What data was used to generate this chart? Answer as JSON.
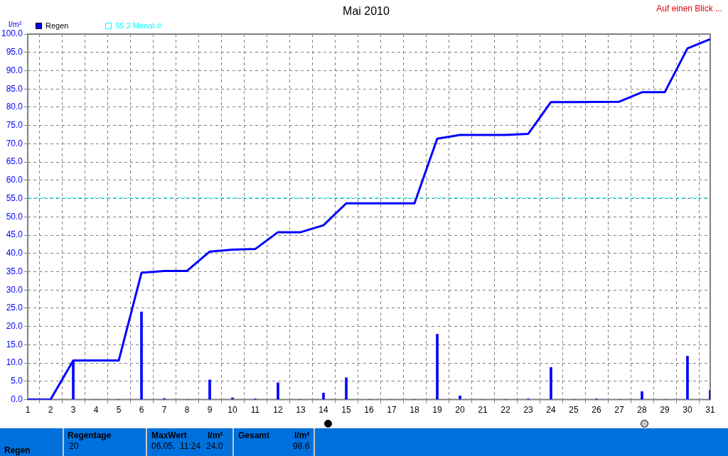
{
  "chart_data": {
    "type": "bar",
    "title": "Mai 2010",
    "ylabel": "l/m²",
    "legend": "top left",
    "x": [
      1,
      2,
      3,
      4,
      5,
      6,
      7,
      8,
      9,
      10,
      11,
      12,
      13,
      14,
      15,
      16,
      17,
      18,
      19,
      20,
      21,
      22,
      23,
      24,
      25,
      26,
      27,
      28,
      29,
      30,
      31
    ],
    "series": [
      {
        "name": "Regen",
        "color": "#0000ff",
        "values": [
          0,
          0,
          10.7,
          0,
          0,
          24.0,
          0.3,
          0,
          5.4,
          0.5,
          0.2,
          4.6,
          0,
          1.8,
          6.0,
          0,
          0,
          0,
          17.9,
          1.0,
          0,
          0,
          0.2,
          8.8,
          0,
          0.2,
          0,
          2.2,
          0,
          11.9,
          2.6
        ]
      },
      {
        "type": "line",
        "color": "#0000ff",
        "x": [
          1,
          2,
          3,
          5,
          6,
          7,
          8,
          9,
          10,
          11,
          12,
          13,
          14,
          15,
          18,
          19,
          20,
          22,
          23,
          24,
          25,
          27,
          28,
          29,
          30,
          31
        ],
        "values": [
          0,
          0,
          10.7,
          10.7,
          34.7,
          35.2,
          35.2,
          40.5,
          41.0,
          41.2,
          45.8,
          45.8,
          47.7,
          53.7,
          53.7,
          71.4,
          72.4,
          72.4,
          72.7,
          81.4,
          81.4,
          81.5,
          84.1,
          84.1,
          96.1,
          98.6
        ]
      }
    ],
    "ref_lines": [
      {
        "axis": "y",
        "value": 55.2,
        "label": "55.2 Monat-#",
        "color": "#00ffff",
        "line_style": "dashed"
      }
    ],
    "xlim": [
      1,
      31
    ],
    "xticks": [
      1,
      2,
      3,
      4,
      5,
      6,
      7,
      8,
      9,
      10,
      11,
      12,
      13,
      14,
      15,
      16,
      17,
      18,
      19,
      20,
      21,
      22,
      23,
      24,
      25,
      26,
      27,
      28,
      29,
      30,
      31
    ],
    "ylim": [
      0,
      100
    ],
    "yticks": [
      {
        "value": 0,
        "label": "0.0"
      },
      {
        "value": 5,
        "label": "5.0"
      },
      {
        "value": 10,
        "label": "10.0"
      },
      {
        "value": 15,
        "label": "15.0"
      },
      {
        "value": 20,
        "label": "20.0"
      },
      {
        "value": 25,
        "label": "25.0"
      },
      {
        "value": 30,
        "label": "30.0"
      },
      {
        "value": 35,
        "label": "35.0"
      },
      {
        "value": 40,
        "label": "40.0"
      },
      {
        "value": 45,
        "label": "45.0"
      },
      {
        "value": 50,
        "label": "50.0"
      },
      {
        "value": 55,
        "label": "55.0"
      },
      {
        "value": 60,
        "label": "60.0"
      },
      {
        "value": 65,
        "label": "65.0"
      },
      {
        "value": 70,
        "label": "70.0"
      },
      {
        "value": 75,
        "label": "75.0"
      },
      {
        "value": 80,
        "label": "80.0"
      },
      {
        "value": 85,
        "label": "85.0"
      },
      {
        "value": 90,
        "label": "90.0"
      },
      {
        "value": 95,
        "label": "95.0"
      },
      {
        "value": 100,
        "label": "100.0"
      }
    ],
    "grid": true,
    "annotations": [
      "Auf einen Blick ...",
      "Regen",
      "Regentage",
      "20",
      "MaxWert",
      "l/m²",
      "06.05.  11:24",
      "24.0",
      "Gesamt",
      "l/m²",
      "98.6"
    ]
  }
}
